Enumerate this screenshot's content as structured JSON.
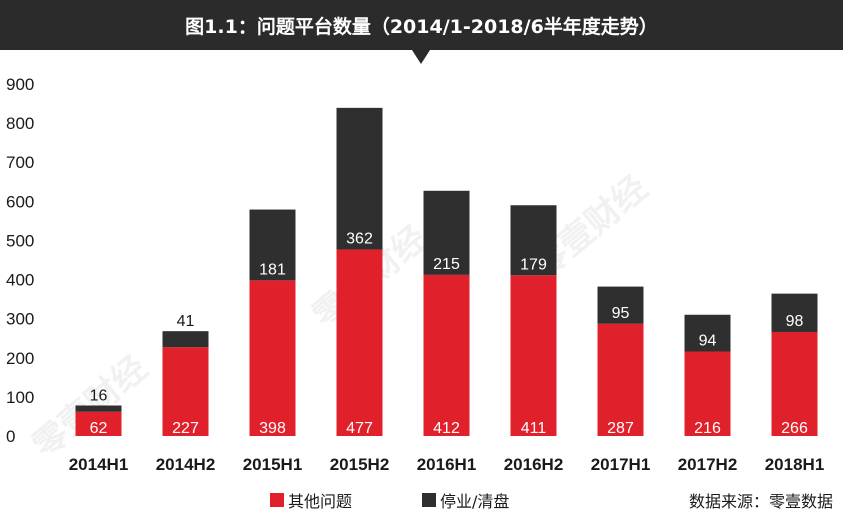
{
  "title": "图1.1：问题平台数量（2014/1-2018/6半年度走势）",
  "watermark_text": "零壹财经",
  "source_text": "数据来源：零壹数据",
  "colors": {
    "other_problems": "#e0202b",
    "suspended": "#2f2f2f",
    "title_bg": "#2b2b2b"
  },
  "chart_data": {
    "type": "bar",
    "stacked": true,
    "title": "图1.1：问题平台数量（2014/1-2018/6半年度走势）",
    "categories": [
      "2014H1",
      "2014H2",
      "2015H1",
      "2015H2",
      "2016H1",
      "2016H2",
      "2017H1",
      "2017H2",
      "2018H1"
    ],
    "series": [
      {
        "name": "其他问题",
        "values": [
          62,
          227,
          398,
          477,
          412,
          411,
          287,
          216,
          266
        ]
      },
      {
        "name": "停业/清盘",
        "values": [
          16,
          41,
          181,
          362,
          215,
          179,
          95,
          94,
          98
        ]
      }
    ],
    "y_ticks": [
      0,
      100,
      200,
      300,
      400,
      500,
      600,
      700,
      800,
      900
    ],
    "ylim": [
      0,
      900
    ],
    "xlabel": "",
    "ylabel": "",
    "legend_position": "bottom"
  }
}
